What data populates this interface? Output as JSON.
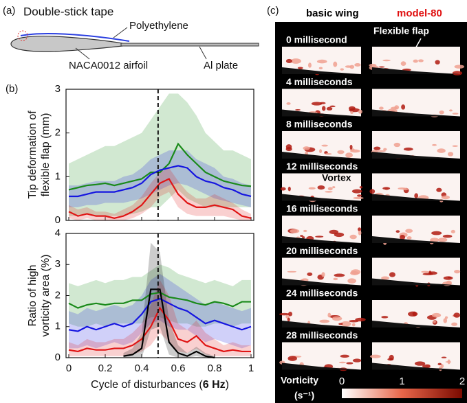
{
  "panel_labels": [
    "(a)",
    "(b)",
    "(c)"
  ],
  "panel_a": {
    "tape": "Double-stick tape",
    "film": "Polyethylene",
    "airfoil": "NACA0012 airfoil",
    "plate": "Al plate"
  },
  "panel_c": {
    "headers": [
      "basic wing",
      "model-80"
    ],
    "header_colors": [
      "#000000",
      "#e01010"
    ],
    "rows": [
      "0 millisecond",
      "4 milliseconds",
      "8 milliseconds",
      "12 milliseconds",
      "16 milliseconds",
      "20 milliseconds",
      "24 milliseconds",
      "28 milliseconds"
    ],
    "flap_note": "Flexible flap",
    "vortex_note": "Vortex",
    "colorbar": {
      "label": "Vorticity",
      "unit": "(s⁻¹)",
      "ticks": [
        0,
        1,
        2
      ]
    }
  },
  "chart_data": [
    {
      "type": "line",
      "ylabel": [
        "Tip deformation of",
        "flexible flap (mm)"
      ],
      "x": [
        0,
        0.05,
        0.1,
        0.15,
        0.2,
        0.25,
        0.3,
        0.35,
        0.4,
        0.45,
        0.5,
        0.55,
        0.6,
        0.65,
        0.7,
        0.75,
        0.8,
        0.85,
        0.9,
        0.95,
        1
      ],
      "xlim": [
        0,
        1
      ],
      "xticks": [
        0,
        0.2,
        0.4,
        0.6,
        0.8,
        1
      ],
      "xtick_labels": false,
      "ylim": [
        0,
        3
      ],
      "yticks": [
        0,
        1,
        2,
        3
      ],
      "vline": 0.49,
      "series": [
        {
          "color": "#1a8a1a",
          "values": [
            0.7,
            0.75,
            0.8,
            0.82,
            0.85,
            0.8,
            0.85,
            0.9,
            0.95,
            1.1,
            1.1,
            1.3,
            1.75,
            1.5,
            1.3,
            1.1,
            1.0,
            0.9,
            0.85,
            0.8,
            0.78
          ],
          "upper": [
            1.3,
            1.4,
            1.5,
            1.6,
            1.7,
            1.7,
            1.8,
            1.9,
            2.0,
            2.3,
            2.6,
            2.9,
            2.9,
            2.7,
            2.4,
            2.0,
            1.8,
            1.6,
            1.6,
            1.5,
            1.4
          ],
          "lower": [
            0.1,
            0.1,
            0.15,
            0.1,
            0.1,
            0.1,
            0.1,
            0.15,
            0.2,
            0.3,
            0.3,
            0.5,
            0.7,
            0.5,
            0.4,
            0.3,
            0.3,
            0.3,
            0.3,
            0.3,
            0.3
          ]
        },
        {
          "color": "#1515e0",
          "values": [
            0.55,
            0.55,
            0.6,
            0.65,
            0.65,
            0.65,
            0.7,
            0.75,
            0.85,
            1.05,
            1.15,
            1.2,
            1.25,
            1.2,
            1.0,
            0.9,
            0.85,
            0.75,
            0.7,
            0.6,
            0.55
          ],
          "upper": [
            0.8,
            0.8,
            0.85,
            0.9,
            0.9,
            0.9,
            1.0,
            1.05,
            1.2,
            1.4,
            1.5,
            1.6,
            1.6,
            1.6,
            1.4,
            1.3,
            1.2,
            1.0,
            0.95,
            0.85,
            0.8
          ],
          "lower": [
            0.3,
            0.3,
            0.35,
            0.35,
            0.4,
            0.4,
            0.4,
            0.45,
            0.5,
            0.6,
            0.7,
            0.8,
            0.85,
            0.8,
            0.7,
            0.6,
            0.5,
            0.45,
            0.4,
            0.35,
            0.3
          ]
        },
        {
          "color": "#e01515",
          "values": [
            0.2,
            0.1,
            0.15,
            0.1,
            0.1,
            0.05,
            0.1,
            0.2,
            0.35,
            0.6,
            0.85,
            0.95,
            0.6,
            0.4,
            0.3,
            0.3,
            0.35,
            0.3,
            0.25,
            0.1,
            0.05
          ],
          "upper": [
            0.35,
            0.25,
            0.3,
            0.2,
            0.2,
            0.15,
            0.25,
            0.35,
            0.55,
            0.85,
            1.1,
            1.2,
            0.9,
            0.65,
            0.5,
            0.5,
            0.6,
            0.5,
            0.4,
            0.25,
            0.15
          ],
          "lower": [
            0.05,
            0,
            0.05,
            0,
            0,
            0,
            0,
            0.05,
            0.15,
            0.3,
            0.55,
            0.65,
            0.3,
            0.15,
            0.1,
            0.1,
            0.1,
            0.1,
            0.05,
            0,
            0
          ]
        }
      ]
    },
    {
      "type": "line",
      "ylabel": [
        "Ratio of high",
        "vorticity area (%)"
      ],
      "xlabel_parts": [
        "Cycle of disturbances (",
        "6 Hz",
        ")"
      ],
      "x": [
        0,
        0.05,
        0.1,
        0.15,
        0.2,
        0.25,
        0.3,
        0.35,
        0.4,
        0.45,
        0.5,
        0.55,
        0.6,
        0.65,
        0.7,
        0.75,
        0.8,
        0.85,
        0.9,
        0.95,
        1
      ],
      "xlim": [
        0,
        1
      ],
      "xticks": [
        0,
        0.2,
        0.4,
        0.6,
        0.8,
        1
      ],
      "xtick_labels": true,
      "ylim": [
        0,
        4
      ],
      "yticks": [
        0,
        1,
        2,
        3,
        4
      ],
      "vline": 0.49,
      "series": [
        {
          "color": "#1a8a1a",
          "values": [
            1.75,
            1.6,
            1.7,
            1.75,
            1.7,
            1.75,
            1.75,
            1.85,
            1.85,
            2.05,
            2.1,
            1.95,
            1.9,
            1.85,
            1.75,
            1.7,
            1.8,
            1.75,
            1.65,
            1.8,
            1.8
          ],
          "upper": [
            2.4,
            2.3,
            2.4,
            2.5,
            2.4,
            2.5,
            2.5,
            2.6,
            2.6,
            2.8,
            3.0,
            2.9,
            2.7,
            2.6,
            2.5,
            2.4,
            2.5,
            2.4,
            2.3,
            2.5,
            2.5
          ],
          "lower": [
            1.1,
            1.0,
            1.0,
            1.1,
            1.0,
            1.1,
            1.1,
            1.1,
            1.1,
            1.3,
            1.3,
            1.2,
            1.1,
            1.1,
            1.0,
            1.0,
            1.1,
            1.1,
            1.0,
            1.1,
            1.1
          ]
        },
        {
          "color": "#1515e0",
          "values": [
            0.9,
            0.85,
            1.0,
            0.9,
            1.0,
            1.1,
            1.0,
            1.1,
            1.4,
            1.8,
            1.9,
            1.75,
            1.6,
            1.5,
            1.3,
            1.1,
            1.2,
            1.1,
            1.0,
            0.9,
            1.0
          ],
          "upper": [
            1.5,
            1.4,
            1.6,
            1.5,
            1.6,
            1.7,
            1.6,
            1.7,
            2.0,
            2.5,
            2.7,
            2.5,
            2.3,
            2.1,
            1.9,
            1.7,
            1.8,
            1.7,
            1.6,
            1.5,
            1.6
          ],
          "lower": [
            0.3,
            0.3,
            0.4,
            0.3,
            0.4,
            0.5,
            0.4,
            0.5,
            0.8,
            1.1,
            1.2,
            1.0,
            0.9,
            0.9,
            0.7,
            0.5,
            0.6,
            0.5,
            0.4,
            0.3,
            0.4
          ]
        },
        {
          "color": "#e01515",
          "values": [
            0.25,
            0.2,
            0.3,
            0.25,
            0.25,
            0.3,
            0.3,
            0.4,
            0.6,
            1.0,
            1.6,
            1.2,
            0.6,
            0.5,
            0.7,
            0.4,
            0.3,
            0.2,
            0.25,
            0.2,
            0.2
          ],
          "upper": [
            0.5,
            0.4,
            0.6,
            0.5,
            0.5,
            0.6,
            0.6,
            0.8,
            1.1,
            1.7,
            2.5,
            2.0,
            1.1,
            0.9,
            1.2,
            0.8,
            0.6,
            0.4,
            0.5,
            0.4,
            0.4
          ],
          "lower": [
            0.05,
            0.05,
            0.05,
            0.05,
            0.05,
            0.05,
            0.05,
            0.1,
            0.2,
            0.4,
            0.8,
            0.5,
            0.2,
            0.15,
            0.3,
            0.1,
            0.05,
            0.05,
            0.05,
            0.05,
            0.05
          ]
        },
        {
          "color": "#000000",
          "values": [
            null,
            null,
            null,
            null,
            null,
            null,
            0.05,
            0.1,
            0.3,
            2.2,
            2.2,
            0.5,
            0.15,
            0.05,
            0.2,
            0.05,
            0,
            null,
            null,
            null,
            null
          ],
          "upper": [
            null,
            null,
            null,
            null,
            null,
            null,
            0.15,
            0.3,
            0.8,
            3.7,
            3.4,
            1.2,
            0.4,
            0.15,
            0.35,
            0.15,
            0.05,
            null,
            null,
            null,
            null
          ],
          "lower": [
            null,
            null,
            null,
            null,
            null,
            null,
            0,
            0,
            0,
            0.9,
            1.0,
            0.1,
            0,
            0,
            0.05,
            0,
            0,
            null,
            null,
            null,
            null
          ]
        }
      ]
    }
  ]
}
